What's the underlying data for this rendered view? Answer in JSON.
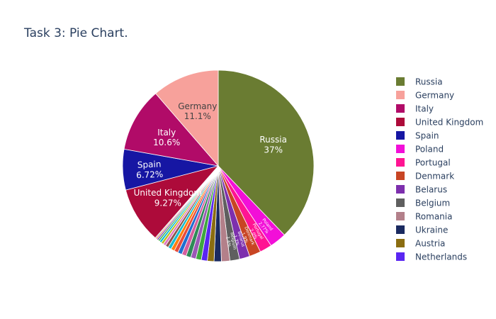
{
  "chart_data": {
    "type": "pie",
    "title": "Task 3: Pie Chart.",
    "direction": "clockwise",
    "start_angle_deg": 90,
    "legend_position": "right",
    "slices": [
      {
        "label": "Russia",
        "value": 37,
        "color": "#6a7c32",
        "pct_text": "37%",
        "text_color": "#ffffff"
      },
      {
        "label": "Poland",
        "value": 2.77,
        "color": "#f20fd8",
        "pct_text": "2.77%",
        "text_color": "#ffffff"
      },
      {
        "label": "Portugal",
        "value": 2.0,
        "color": "#ff1493",
        "pct_text": "2.0%",
        "text_color": "#ffffff"
      },
      {
        "label": "Denmark",
        "value": 1.9,
        "color": "#c84524",
        "pct_text": "1.9%",
        "text_color": "#ffffff"
      },
      {
        "label": "Belarus",
        "value": 1.7,
        "color": "#7d2fad",
        "pct_text": "1.7%",
        "text_color": "#ffffff"
      },
      {
        "label": "Belgium",
        "value": 1.6,
        "color": "#5f5f5f",
        "pct_text": "1.6%",
        "text_color": "#ffffff"
      },
      {
        "label": "Romania",
        "value": 1.4,
        "color": "#b3808a",
        "pct_text": "",
        "text_color": "#ffffff"
      },
      {
        "label": "Ukraine",
        "value": 1.2,
        "color": "#1a2a60",
        "pct_text": "",
        "text_color": "#ffffff"
      },
      {
        "label": "Austria",
        "value": 1.1,
        "color": "#8b6d11",
        "pct_text": "",
        "text_color": "#ffffff"
      },
      {
        "label": "Netherlands",
        "value": 1.0,
        "color": "#5a26f2",
        "pct_text": "",
        "text_color": "#ffffff"
      },
      {
        "label": "",
        "value": 0.9,
        "color": "#3ea83e",
        "pct_text": "",
        "text_color": "#ffffff"
      },
      {
        "label": "",
        "value": 0.85,
        "color": "#9b59b6",
        "pct_text": "",
        "text_color": "#ffffff"
      },
      {
        "label": "",
        "value": 0.8,
        "color": "#2e8b57",
        "pct_text": "",
        "text_color": "#ffffff"
      },
      {
        "label": "",
        "value": 0.75,
        "color": "#d55e9f",
        "pct_text": "",
        "text_color": "#ffffff"
      },
      {
        "label": "",
        "value": 0.7,
        "color": "#1f6fd1",
        "pct_text": "",
        "text_color": "#ffffff"
      },
      {
        "label": "",
        "value": 0.65,
        "color": "#e74c3c",
        "pct_text": "",
        "text_color": "#ffffff"
      },
      {
        "label": "",
        "value": 0.6,
        "color": "#ff7f0e",
        "pct_text": "",
        "text_color": "#ffffff"
      },
      {
        "label": "",
        "value": 0.55,
        "color": "#17becf",
        "pct_text": "",
        "text_color": "#ffffff"
      },
      {
        "label": "",
        "value": 0.5,
        "color": "#8c564b",
        "pct_text": "",
        "text_color": "#ffffff"
      },
      {
        "label": "",
        "value": 0.45,
        "color": "#e377c2",
        "pct_text": "",
        "text_color": "#ffffff"
      },
      {
        "label": "",
        "value": 0.4,
        "color": "#bcbd22",
        "pct_text": "",
        "text_color": "#ffffff"
      },
      {
        "label": "",
        "value": 0.35,
        "color": "#00bcd4",
        "pct_text": "",
        "text_color": "#ffffff"
      },
      {
        "label": "",
        "value": 0.3,
        "color": "#4caf50",
        "pct_text": "",
        "text_color": "#ffffff"
      },
      {
        "label": "",
        "value": 0.25,
        "color": "#673ab7",
        "pct_text": "",
        "text_color": "#ffffff"
      },
      {
        "label": "",
        "value": 0.2,
        "color": "#ff5722",
        "pct_text": "",
        "text_color": "#ffffff"
      },
      {
        "label": "",
        "value": 0.15,
        "color": "#607d8b",
        "pct_text": "",
        "text_color": "#ffffff"
      },
      {
        "label": "United Kingdom",
        "value": 9.27,
        "color": "#ad0b3a",
        "pct_text": "9.27%",
        "text_color": "#ffffff"
      },
      {
        "label": "Spain",
        "value": 6.72,
        "color": "#1616a3",
        "pct_text": "6.72%",
        "text_color": "#ffffff"
      },
      {
        "label": "Italy",
        "value": 10.6,
        "color": "#b10b68",
        "pct_text": "10.6%",
        "text_color": "#ffffff"
      },
      {
        "label": "Germany",
        "value": 11.1,
        "color": "#f7a19b",
        "pct_text": "11.1%",
        "text_color": "#444444"
      }
    ],
    "legend": [
      {
        "label": "Russia",
        "color": "#6a7c32"
      },
      {
        "label": "Germany",
        "color": "#f7a19b"
      },
      {
        "label": "Italy",
        "color": "#b10b68"
      },
      {
        "label": "United Kingdom",
        "color": "#ad0b3a"
      },
      {
        "label": "Spain",
        "color": "#1616a3"
      },
      {
        "label": "Poland",
        "color": "#f20fd8"
      },
      {
        "label": "Portugal",
        "color": "#ff1493"
      },
      {
        "label": "Denmark",
        "color": "#c84524"
      },
      {
        "label": "Belarus",
        "color": "#7d2fad"
      },
      {
        "label": "Belgium",
        "color": "#5f5f5f"
      },
      {
        "label": "Romania",
        "color": "#b3808a"
      },
      {
        "label": "Ukraine",
        "color": "#1a2a60"
      },
      {
        "label": "Austria",
        "color": "#8b6d11"
      },
      {
        "label": "Netherlands",
        "color": "#5a26f2"
      }
    ]
  }
}
